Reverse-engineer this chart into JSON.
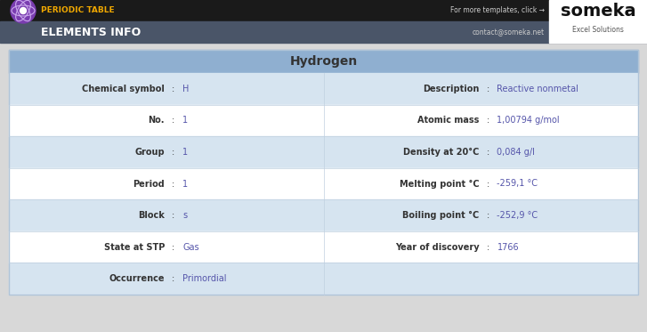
{
  "title": "Hydrogen",
  "header_black_bg": "#1a1a1a",
  "header_blue_bg": "#4a5568",
  "header_title_text": "PERIODIC TABLE",
  "header_subtitle_text": "ELEMENTS INFO",
  "header_title_color": "#f0a800",
  "header_subtitle_color": "#ffffff",
  "header_right_text1": "For more templates, click →",
  "header_right_text2": "contact@someka.net",
  "header_right_color": "#cccccc",
  "someka_bg": "#ffffff",
  "someka_text": "someka",
  "someka_sub": "Excel Solutions",
  "title_bg": "#8fafd0",
  "title_color": "#333333",
  "table_bg_light": "#ffffff",
  "table_bg_alt": "#d6e4f0",
  "table_border": "#b0c4d8",
  "label_color": "#333333",
  "value_color": "#5555aa",
  "outer_bg": "#d8d8d8",
  "rows": [
    {
      "left_label": "Chemical symbol",
      "left_value": "H",
      "right_label": "Description",
      "right_value": "Reactive nonmetal",
      "alt": true
    },
    {
      "left_label": "No.",
      "left_value": "1",
      "right_label": "Atomic mass",
      "right_value": "1,00794 g/mol",
      "alt": false
    },
    {
      "left_label": "Group",
      "left_value": "1",
      "right_label": "Density at 20°C",
      "right_value": "0,084 g/l",
      "alt": true
    },
    {
      "left_label": "Period",
      "left_value": "1",
      "right_label": "Melting point °C",
      "right_value": "-259,1 °C",
      "alt": false
    },
    {
      "left_label": "Block",
      "left_value": "s",
      "right_label": "Boiling point °C",
      "right_value": "-252,9 °C",
      "alt": true
    },
    {
      "left_label": "State at STP",
      "left_value": "Gas",
      "right_label": "Year of discovery",
      "right_value": "1766",
      "alt": false
    },
    {
      "left_label": "Occurrence",
      "left_value": "Primordial",
      "right_label": "",
      "right_value": "",
      "alt": true
    }
  ],
  "fig_w": 7.27,
  "fig_h": 3.73,
  "dpi": 100
}
